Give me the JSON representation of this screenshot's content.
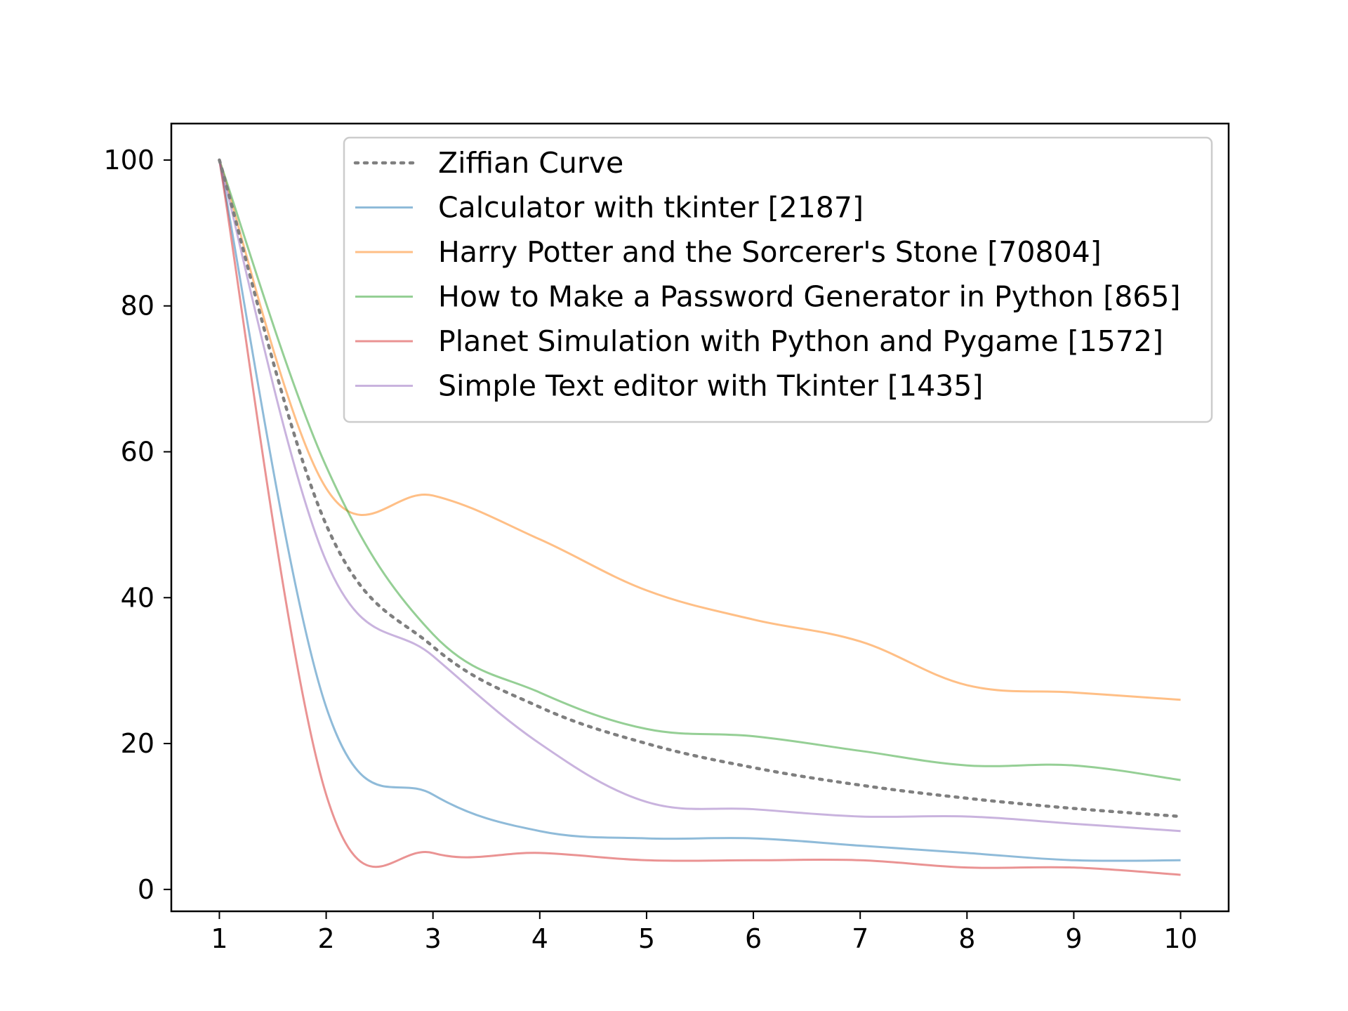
{
  "chart_data": {
    "type": "line",
    "title": "",
    "xlabel": "",
    "ylabel": "",
    "xlim": [
      0.55,
      10.45
    ],
    "ylim": [
      -3,
      105
    ],
    "x_ticks": [
      1,
      2,
      3,
      4,
      5,
      6,
      7,
      8,
      9,
      10
    ],
    "y_ticks": [
      0,
      20,
      40,
      60,
      80,
      100
    ],
    "legend_position": "top-right",
    "grid": false,
    "x": [
      1,
      2,
      3,
      4,
      5,
      6,
      7,
      8,
      9,
      10
    ],
    "series": [
      {
        "name": "Ziffian Curve",
        "color": "#7f7f7f",
        "style": "dotted",
        "opacity": 1.0,
        "values": [
          100,
          50,
          33.3,
          25,
          20,
          16.7,
          14.3,
          12.5,
          11.1,
          10
        ]
      },
      {
        "name": "Calculator with tkinter [2187]",
        "color": "#1f77b4",
        "style": "solid",
        "opacity": 0.5,
        "values": [
          100,
          25,
          13,
          8,
          7,
          7,
          6,
          5,
          4,
          4
        ]
      },
      {
        "name": "Harry Potter and the Sorcerer's Stone [70804]",
        "color": "#ff7f0e",
        "style": "solid",
        "opacity": 0.5,
        "values": [
          100,
          55,
          54,
          48,
          41,
          37,
          34,
          28,
          27,
          26
        ]
      },
      {
        "name": "How to Make a Password Generator in Python [865]",
        "color": "#2ca02c",
        "style": "solid",
        "opacity": 0.5,
        "values": [
          100,
          58,
          35,
          27,
          22,
          21,
          19,
          17,
          17,
          15
        ]
      },
      {
        "name": "Planet Simulation with Python and Pygame [1572]",
        "color": "#d62728",
        "style": "solid",
        "opacity": 0.5,
        "values": [
          100,
          13,
          5,
          5,
          4,
          4,
          4,
          3,
          3,
          2
        ]
      },
      {
        "name": "Simple Text editor with Tkinter [1435]",
        "color": "#9467bd",
        "style": "solid",
        "opacity": 0.5,
        "values": [
          100,
          45,
          32,
          20,
          12,
          11,
          10,
          10,
          9,
          8
        ]
      }
    ]
  }
}
